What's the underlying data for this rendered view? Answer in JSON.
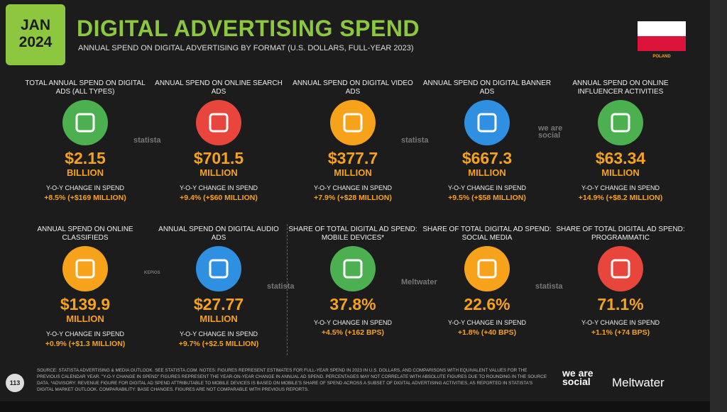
{
  "header": {
    "badge_month": "JAN",
    "badge_year": "2024",
    "title": "DIGITAL ADVERTISING SPEND",
    "subtitle": "ANNUAL SPEND ON DIGITAL ADVERTISING BY FORMAT (U.S. DOLLARS, FULL-YEAR 2023)",
    "country": "POLAND"
  },
  "cards": [
    {
      "label": "TOTAL ANNUAL SPEND ON DIGITAL ADS (ALL TYPES)",
      "value": "$2.15",
      "unit": "BILLION",
      "change_label": "Y-O-Y CHANGE IN SPEND",
      "change": "+8.5% (+$169 MILLION)",
      "color": "#4caf50"
    },
    {
      "label": "ANNUAL SPEND ON ONLINE SEARCH ADS",
      "value": "$701.5",
      "unit": "MILLION",
      "change_label": "Y-O-Y CHANGE IN SPEND",
      "change": "+9.4% (+$60 MILLION)",
      "color": "#e8453c"
    },
    {
      "label": "ANNUAL SPEND ON DIGITAL VIDEO ADS",
      "value": "$377.7",
      "unit": "MILLION",
      "change_label": "Y-O-Y CHANGE IN SPEND",
      "change": "+7.9% (+$28 MILLION)",
      "color": "#f7a21b"
    },
    {
      "label": "ANNUAL SPEND ON DIGITAL BANNER ADS",
      "value": "$667.3",
      "unit": "MILLION",
      "change_label": "Y-O-Y CHANGE IN SPEND",
      "change": "+9.5% (+$58 MILLION)",
      "color": "#2f8fe0"
    },
    {
      "label": "ANNUAL SPEND ON ONLINE INFLUENCER ACTIVITIES",
      "value": "$63.34",
      "unit": "MILLION",
      "change_label": "Y-O-Y CHANGE IN SPEND",
      "change": "+14.9% (+$8.2 MILLION)",
      "color": "#4caf50"
    },
    {
      "label": "ANNUAL SPEND ON ONLINE CLASSIFIEDS",
      "value": "$139.9",
      "unit": "MILLION",
      "change_label": "Y-O-Y CHANGE IN SPEND",
      "change": "+0.9% (+$1.3 MILLION)",
      "color": "#f7a21b"
    },
    {
      "label": "ANNUAL SPEND ON DIGITAL AUDIO ADS",
      "value": "$27.77",
      "unit": "MILLION",
      "change_label": "Y-O-Y CHANGE IN SPEND",
      "change": "+9.7% (+$2.5 MILLION)",
      "color": "#2f8fe0"
    },
    {
      "label": "SHARE OF TOTAL DIGITAL AD SPEND: MOBILE DEVICES*",
      "value": "37.8%",
      "change_label": "Y-O-Y CHANGE IN SPEND",
      "change": "+4.5% (+162 BPS)",
      "color": "#4caf50"
    },
    {
      "label": "SHARE OF TOTAL DIGITAL AD SPEND: SOCIAL MEDIA",
      "value": "22.6%",
      "change_label": "Y-O-Y CHANGE IN SPEND",
      "change": "+1.8% (+40 BPS)",
      "color": "#f7a21b"
    },
    {
      "label": "SHARE OF TOTAL DIGITAL AD SPEND: PROGRAMMATIC",
      "value": "71.1%",
      "change_label": "Y-O-Y CHANGE IN SPEND",
      "change": "+1.1% (+74 BPS)",
      "color": "#e8453c"
    }
  ],
  "watermarks": [
    "statista",
    "we are social",
    "statista",
    "KEPIOS",
    "statista",
    "Meltwater",
    "statista"
  ],
  "footer": {
    "page_number": "113",
    "note": "SOURCE: STATISTA ADVERTISING & MEDIA OUTLOOK. SEE STATISTA.COM. NOTES: FIGURES REPRESENT ESTIMATES FOR FULL-YEAR SPEND IN 2023 IN U.S. DOLLARS, AND COMPARISONS WITH EQUIVALENT VALUES FOR THE PREVIOUS CALENDAR YEAR. \"Y-O-Y CHANGE IN SPEND\" FIGURES REPRESENT THE YEAR-ON-YEAR CHANGE IN ANNUAL AD SPEND. PERCENTAGES MAY NOT CORRELATE WITH ABSOLUTE FIGURES DUE TO ROUNDING IN THE SOURCE DATA. *ADVISORY: REVENUE FIGURE FOR DIGITAL AD SPEND ATTRIBUTABLE TO MOBILE DEVICES IS BASED ON MOBILE'S SHARE OF SPEND ACROSS A SUBSET OF DIGITAL ADVERTISING ACTIVITIES, AS REPORTED IN STATISTA'S DIGITAL MARKET OUTLOOK. COMPARABILITY: BASE CHANGES. FIGURES ARE NOT COMPARABLE WITH PREVIOUS REPORTS.",
    "logo_1": "we are social",
    "logo_2": "Meltwater"
  }
}
